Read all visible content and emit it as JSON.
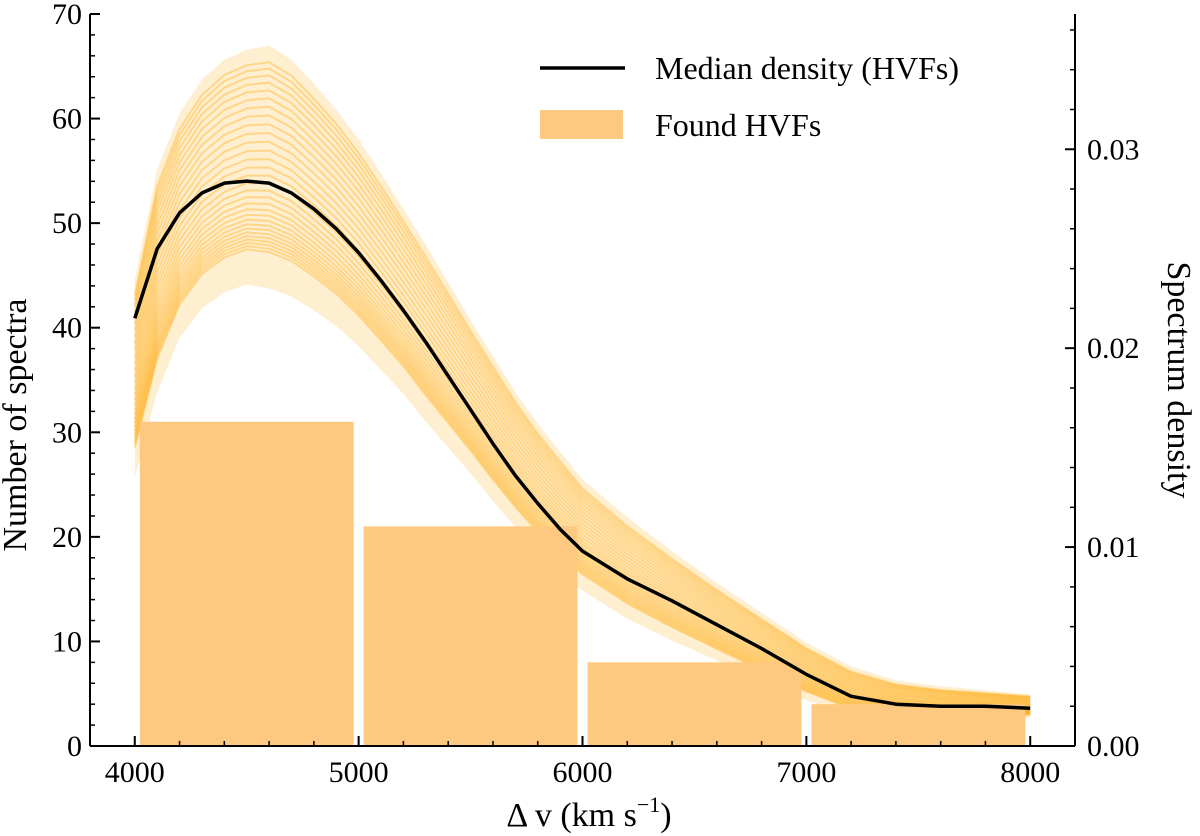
{
  "chart_data": {
    "type": "bar",
    "title": "",
    "xlabel": "Δ v (km s",
    "xlabel_sup": "−1",
    "xlabel_close": ")",
    "ylabel": "Number of spectra",
    "y2label": "Spectrum density",
    "xlim": [
      3800,
      8200
    ],
    "ylim": [
      0,
      70
    ],
    "y2lim": [
      0,
      0.0368
    ],
    "x_ticks": [
      4000,
      5000,
      6000,
      7000,
      8000
    ],
    "y_ticks": [
      0,
      10,
      20,
      30,
      40,
      50,
      60,
      70
    ],
    "y2_ticks": [
      0.0,
      0.01,
      0.02,
      0.03
    ],
    "y2_tick_labels": [
      "0.00",
      "0.01",
      "0.02",
      "0.03"
    ],
    "histogram": {
      "name": "Found HVFs",
      "color": "#fdc87f",
      "bins": [
        [
          4000,
          5000
        ],
        [
          5000,
          6000
        ],
        [
          6000,
          7000
        ],
        [
          7000,
          8000
        ]
      ],
      "values": [
        31,
        21,
        8,
        4
      ]
    },
    "median_curve": {
      "name": "Median density (HVFs)",
      "color": "#000000",
      "x": [
        4000,
        4100,
        4200,
        4300,
        4400,
        4500,
        4600,
        4700,
        4800,
        4900,
        5000,
        5100,
        5200,
        5300,
        5400,
        5500,
        5600,
        5700,
        5800,
        5900,
        6000,
        6200,
        6400,
        6600,
        6800,
        7000,
        7200,
        7400,
        7600,
        7800,
        8000
      ],
      "y": [
        0.0215,
        0.025,
        0.0268,
        0.0278,
        0.0283,
        0.0284,
        0.0283,
        0.0278,
        0.027,
        0.026,
        0.0248,
        0.0234,
        0.0219,
        0.0203,
        0.0186,
        0.0169,
        0.0152,
        0.0136,
        0.0122,
        0.0109,
        0.0098,
        0.0084,
        0.0073,
        0.0061,
        0.0049,
        0.0036,
        0.0025,
        0.0021,
        0.002,
        0.002,
        0.0019
      ]
    },
    "bootstrap_band": {
      "color": "#ffa500",
      "lower": [
        0.0135,
        0.0178,
        0.0205,
        0.022,
        0.0228,
        0.0232,
        0.023,
        0.0226,
        0.0219,
        0.0211,
        0.0201,
        0.0189,
        0.0177,
        0.0163,
        0.015,
        0.0137,
        0.0123,
        0.011,
        0.0098,
        0.0087,
        0.0078,
        0.0064,
        0.0053,
        0.0043,
        0.0033,
        0.0023,
        0.0015,
        0.0013,
        0.0012,
        0.0013,
        0.0014
      ],
      "upper": [
        0.0235,
        0.029,
        0.0318,
        0.0335,
        0.0345,
        0.035,
        0.0352,
        0.0345,
        0.0333,
        0.032,
        0.0305,
        0.0288,
        0.027,
        0.0252,
        0.0233,
        0.0214,
        0.0196,
        0.0178,
        0.0162,
        0.0148,
        0.0134,
        0.0115,
        0.0098,
        0.0082,
        0.0067,
        0.0052,
        0.004,
        0.0033,
        0.003,
        0.0028,
        0.0026
      ]
    },
    "legend": {
      "placement": "top-right",
      "entries": [
        "Median density (HVFs)",
        "Found HVFs"
      ]
    },
    "grid": false
  }
}
